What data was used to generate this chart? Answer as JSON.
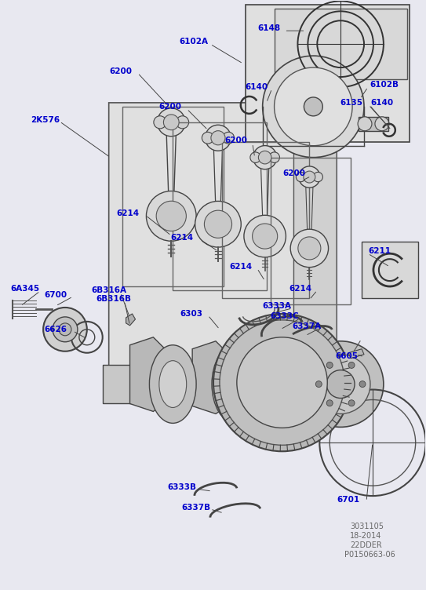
{
  "bg_color": "#e8e8f0",
  "fig_width": 5.43,
  "fig_height": 7.52,
  "dpi": 100,
  "label_color": "#0000cc",
  "line_color": "#333333",
  "gray_color": "#666666",
  "label_font_size": 7.5,
  "info_font_size": 7.0,
  "labels_blue": [
    [
      "6102A",
      228,
      52
    ],
    [
      "6148",
      329,
      35
    ],
    [
      "6102B",
      472,
      107
    ],
    [
      "6140",
      313,
      110
    ],
    [
      "6135",
      434,
      130
    ],
    [
      "6140",
      473,
      130
    ],
    [
      "6200",
      139,
      90
    ],
    [
      "2K576",
      38,
      152
    ],
    [
      "6200",
      202,
      135
    ],
    [
      "6200",
      286,
      178
    ],
    [
      "6200",
      361,
      220
    ],
    [
      "6214",
      148,
      272
    ],
    [
      "6214",
      217,
      303
    ],
    [
      "6214",
      292,
      340
    ],
    [
      "6214",
      369,
      368
    ],
    [
      "6211",
      470,
      320
    ],
    [
      "6A345",
      12,
      368
    ],
    [
      "6700",
      55,
      376
    ],
    [
      "6B316A",
      116,
      370
    ],
    [
      "6B316B",
      122,
      381
    ],
    [
      "6626",
      55,
      420
    ],
    [
      "6303",
      229,
      400
    ],
    [
      "6333A",
      335,
      390
    ],
    [
      "6333C",
      345,
      403
    ],
    [
      "6337A",
      373,
      416
    ],
    [
      "6605",
      428,
      454
    ],
    [
      "6333B",
      213,
      622
    ],
    [
      "6701",
      430,
      638
    ],
    [
      "6337B",
      231,
      648
    ]
  ],
  "info_texts": [
    [
      "3031105",
      447,
      672
    ],
    [
      "18-2014",
      447,
      684
    ],
    [
      "22DDER",
      447,
      696
    ],
    [
      "P0150663-06",
      440,
      708
    ]
  ]
}
